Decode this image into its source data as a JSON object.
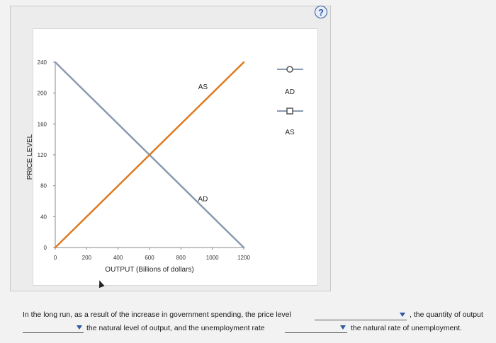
{
  "help": {
    "label": "?"
  },
  "chart_data": {
    "type": "line",
    "xlabel": "OUTPUT (Billions of dollars)",
    "ylabel": "PRICE LEVEL",
    "x_ticks": [
      0,
      200,
      400,
      600,
      800,
      1000,
      1200
    ],
    "y_ticks": [
      0,
      40,
      80,
      120,
      160,
      200,
      240
    ],
    "xlim": [
      0,
      1200
    ],
    "ylim": [
      0,
      240
    ],
    "series": [
      {
        "name": "AS",
        "color": "#e07a1f",
        "points": [
          [
            0,
            0
          ],
          [
            1200,
            240
          ]
        ]
      },
      {
        "name": "AD",
        "color": "#8a9aaf",
        "points": [
          [
            0,
            240
          ],
          [
            1200,
            0
          ]
        ]
      }
    ],
    "annotations": [
      {
        "text": "AS",
        "x": 940,
        "y": 205
      },
      {
        "text": "AD",
        "x": 940,
        "y": 60
      }
    ],
    "legend": {
      "placement": "right",
      "items": [
        {
          "label": "AD",
          "marker": "circle"
        },
        {
          "label": "AS",
          "marker": "square"
        }
      ]
    }
  },
  "question": {
    "part1": "In the long run, as a result of the increase in government spending, the price level",
    "part2": ", the quantity of output",
    "part3": "the natural level of output, and the unemployment rate",
    "part4": "the natural rate of unemployment."
  }
}
